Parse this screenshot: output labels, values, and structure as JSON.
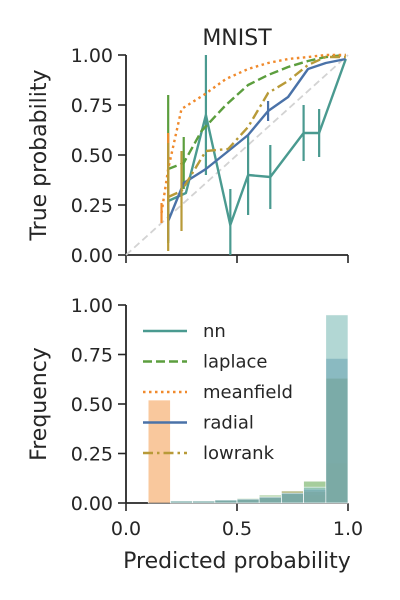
{
  "chart_data": [
    {
      "type": "line",
      "title": "MNIST",
      "xlabel": "",
      "ylabel": "True probability",
      "xlim": [
        0,
        1
      ],
      "ylim": [
        0,
        1
      ],
      "xticks": [
        0,
        0.5,
        1
      ],
      "xtick_labels_visible": false,
      "yticks": [
        0,
        0.25,
        0.5,
        0.75,
        1
      ],
      "ytick_labels": [
        "0.00",
        "0.25",
        "0.50",
        "0.75",
        "1.00"
      ],
      "reference_line": {
        "style": "dashed",
        "color": "#d3d3d3",
        "points": [
          [
            0,
            0
          ],
          [
            1,
            1
          ]
        ]
      },
      "series": [
        {
          "name": "nn",
          "color": "#4a9a90",
          "dash": "solid",
          "x": [
            0.19,
            0.27,
            0.36,
            0.47,
            0.55,
            0.65,
            0.8,
            0.87,
            0.99
          ],
          "y": [
            0.27,
            0.31,
            0.7,
            0.15,
            0.4,
            0.39,
            0.61,
            0.61,
            0.98
          ],
          "err": [
            0.12,
            0.0,
            0.3,
            0.18,
            0.2,
            0.16,
            0.14,
            0.12,
            0.0
          ]
        },
        {
          "name": "laplace",
          "color": "#5c9e3e",
          "dash": "dashed",
          "x": [
            0.19,
            0.26,
            0.34,
            0.45,
            0.55,
            0.64,
            0.73,
            0.82,
            0.9,
            0.99
          ],
          "y": [
            0.43,
            0.46,
            0.62,
            0.75,
            0.85,
            0.9,
            0.94,
            0.97,
            0.99,
            1.0
          ],
          "err": [
            0.37,
            0.13,
            0.0,
            0.0,
            0.0,
            0.0,
            0.0,
            0.0,
            0.0,
            0.0
          ]
        },
        {
          "name": "meanfield",
          "color": "#f08a2c",
          "dash": "dotted",
          "x": [
            0.16,
            0.19,
            0.25,
            0.35,
            0.45,
            0.55,
            0.64,
            0.73,
            0.82,
            0.9,
            0.99
          ],
          "y": [
            0.21,
            0.43,
            0.73,
            0.8,
            0.88,
            0.93,
            0.96,
            0.98,
            0.99,
            1.0,
            1.0
          ],
          "err": [
            0.05,
            0.18,
            0.0,
            0.0,
            0.0,
            0.0,
            0.0,
            0.0,
            0.0,
            0.0,
            0.0
          ]
        },
        {
          "name": "radial",
          "color": "#4a72a8",
          "dash": "solid",
          "x": [
            0.19,
            0.26,
            0.36,
            0.45,
            0.55,
            0.64,
            0.73,
            0.82,
            0.9,
            0.99
          ],
          "y": [
            0.17,
            0.36,
            0.43,
            0.51,
            0.6,
            0.72,
            0.79,
            0.93,
            0.96,
            0.98
          ],
          "err": [
            0.1,
            0.0,
            0.0,
            0.0,
            0.0,
            0.05,
            0.0,
            0.0,
            0.0,
            0.0
          ]
        },
        {
          "name": "lowrank",
          "color": "#b89a38",
          "dash": "dashdot",
          "x": [
            0.19,
            0.25,
            0.36,
            0.46,
            0.55,
            0.64,
            0.73,
            0.82,
            0.9,
            0.99
          ],
          "y": [
            0.29,
            0.32,
            0.52,
            0.53,
            0.64,
            0.81,
            0.87,
            0.95,
            0.99,
            0.99
          ],
          "err": [
            0.27,
            0.2,
            0.0,
            0.0,
            0.0,
            0.0,
            0.0,
            0.0,
            0.0,
            0.0
          ]
        }
      ]
    },
    {
      "type": "bar",
      "title": "",
      "xlabel": "Predicted probability",
      "ylabel": "Frequency",
      "xlim": [
        0,
        1
      ],
      "ylim": [
        0,
        1
      ],
      "xticks": [
        0,
        0.5,
        1
      ],
      "xtick_labels": [
        "0.0",
        "0.5",
        "1.0"
      ],
      "yticks": [
        0,
        0.25,
        0.5,
        0.75,
        1
      ],
      "ytick_labels": [
        "0.00",
        "0.25",
        "0.50",
        "0.75",
        "1.00"
      ],
      "legend": {
        "placement": "upper-left",
        "entries": [
          "nn",
          "laplace",
          "meanfield",
          "radial",
          "lowrank"
        ]
      },
      "bin_edges": [
        0.1,
        0.2,
        0.3,
        0.4,
        0.5,
        0.6,
        0.7,
        0.8,
        0.9,
        1.0
      ],
      "series": [
        {
          "name": "meanfield",
          "color": "#f5a35c",
          "values": [
            0.52,
            0.01,
            0.01,
            0.01,
            0.02,
            0.025,
            0.04,
            0.04,
            0.2
          ]
        },
        {
          "name": "laplace",
          "color": "#6aab5a",
          "values": [
            0.0,
            0.01,
            0.01,
            0.015,
            0.025,
            0.04,
            0.06,
            0.11,
            0.63
          ]
        },
        {
          "name": "lowrank",
          "color": "#9a8a3a",
          "values": [
            0.0,
            0.01,
            0.01,
            0.015,
            0.02,
            0.03,
            0.06,
            0.06,
            0.63
          ]
        },
        {
          "name": "radial",
          "color": "#5a86b0",
          "values": [
            0.0,
            0.01,
            0.01,
            0.015,
            0.02,
            0.03,
            0.05,
            0.07,
            0.73
          ]
        },
        {
          "name": "nn",
          "color": "#7fbcb8",
          "values": [
            0.0,
            0.01,
            0.01,
            0.015,
            0.02,
            0.03,
            0.05,
            0.08,
            0.95
          ]
        }
      ]
    }
  ]
}
